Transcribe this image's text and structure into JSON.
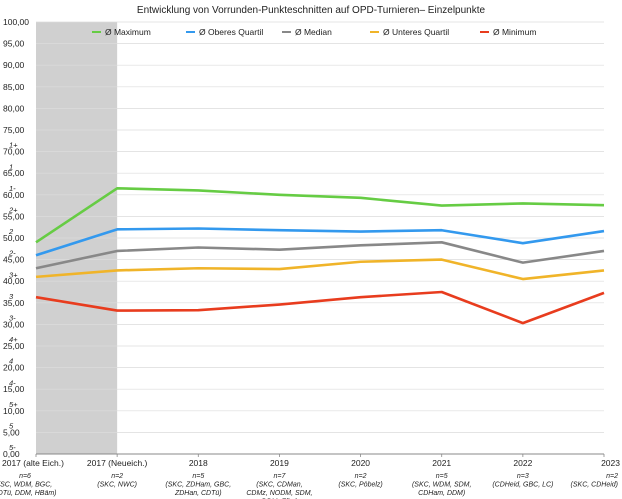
{
  "chart_data": {
    "type": "line",
    "title": "Entwicklung von Vorrunden-Punkteschnitten auf OPD-Turnieren– Einzelpunkte",
    "categories": [
      "2017 (alte Eich.)",
      "2017 (Neueich.)",
      "2018",
      "2019",
      "2020",
      "2021",
      "2022",
      "2023"
    ],
    "notes": [
      [
        "n=6",
        "(SC, WDM, BGC,",
        "ZDTü, DDM, HBäm)"
      ],
      [
        "n=2",
        "(SKC, NWC)"
      ],
      [
        "n=5",
        "(SKC, ZDHam, GBC,",
        "ZDHan, CDTü)"
      ],
      [
        "n=7",
        "(SKC, CDMan,",
        "CDMz, NODM, SDM,",
        "DDM, Elbv)"
      ],
      [
        "n=2",
        "(SKC, Pöbelz)"
      ],
      [
        "n=5",
        "(SKC, WDM, SDM,",
        "CDHam, DDM)"
      ],
      [
        "n=3",
        "(CDHeid, GBC, LC)"
      ],
      [
        "n=2",
        "(SKC, CDHeid)"
      ]
    ],
    "series": [
      {
        "name": "Ø Maximum",
        "color": "#66cc44",
        "values": [
          49.0,
          61.5,
          61.0,
          60.0,
          59.3,
          57.5,
          58.0,
          57.6
        ]
      },
      {
        "name": "Ø Oberes Quartil",
        "color": "#3399ee",
        "values": [
          46.0,
          52.0,
          52.2,
          51.8,
          51.5,
          51.8,
          48.8,
          51.6
        ]
      },
      {
        "name": "Ø Median",
        "color": "#888888",
        "values": [
          43.0,
          47.0,
          47.8,
          47.3,
          48.3,
          49.0,
          44.3,
          47.0
        ]
      },
      {
        "name": "Ø Unteres Quartil",
        "color": "#f0b429",
        "values": [
          41.0,
          42.5,
          43.0,
          42.8,
          44.5,
          45.0,
          40.5,
          42.5
        ]
      },
      {
        "name": "Ø Minimum",
        "color": "#e83c1e",
        "values": [
          36.3,
          33.2,
          33.3,
          34.6,
          36.3,
          37.5,
          30.3,
          37.3
        ]
      }
    ],
    "ylim": [
      0,
      100
    ],
    "yticks": [
      "0,00",
      "5,00",
      "10,00",
      "15,00",
      "20,00",
      "25,00",
      "30,00",
      "35,00",
      "40,00",
      "45,00",
      "50,00",
      "55,00",
      "60,00",
      "65,00",
      "70,00",
      "75,00",
      "80,00",
      "85,00",
      "90,00",
      "95,00",
      "100,00"
    ],
    "grade_labels": [
      {
        "y": 1.6,
        "text": "5-"
      },
      {
        "y": 6.6,
        "text": "5"
      },
      {
        "y": 11.6,
        "text": "5+"
      },
      {
        "y": 16.6,
        "text": "4-"
      },
      {
        "y": 21.6,
        "text": "4"
      },
      {
        "y": 26.6,
        "text": "4+"
      },
      {
        "y": 31.6,
        "text": "3-"
      },
      {
        "y": 36.6,
        "text": "3"
      },
      {
        "y": 41.6,
        "text": "3+"
      },
      {
        "y": 46.6,
        "text": "2-"
      },
      {
        "y": 51.6,
        "text": "2"
      },
      {
        "y": 56.6,
        "text": "2+"
      },
      {
        "y": 61.6,
        "text": "1-"
      },
      {
        "y": 66.6,
        "text": "1"
      },
      {
        "y": 71.6,
        "text": "1+"
      }
    ],
    "shaded_region": {
      "from": "2017 (alte Eich.)",
      "to": "2017 (Neueich.)",
      "color": "#d0d0d0"
    },
    "grid": true,
    "legend_position": "top"
  }
}
